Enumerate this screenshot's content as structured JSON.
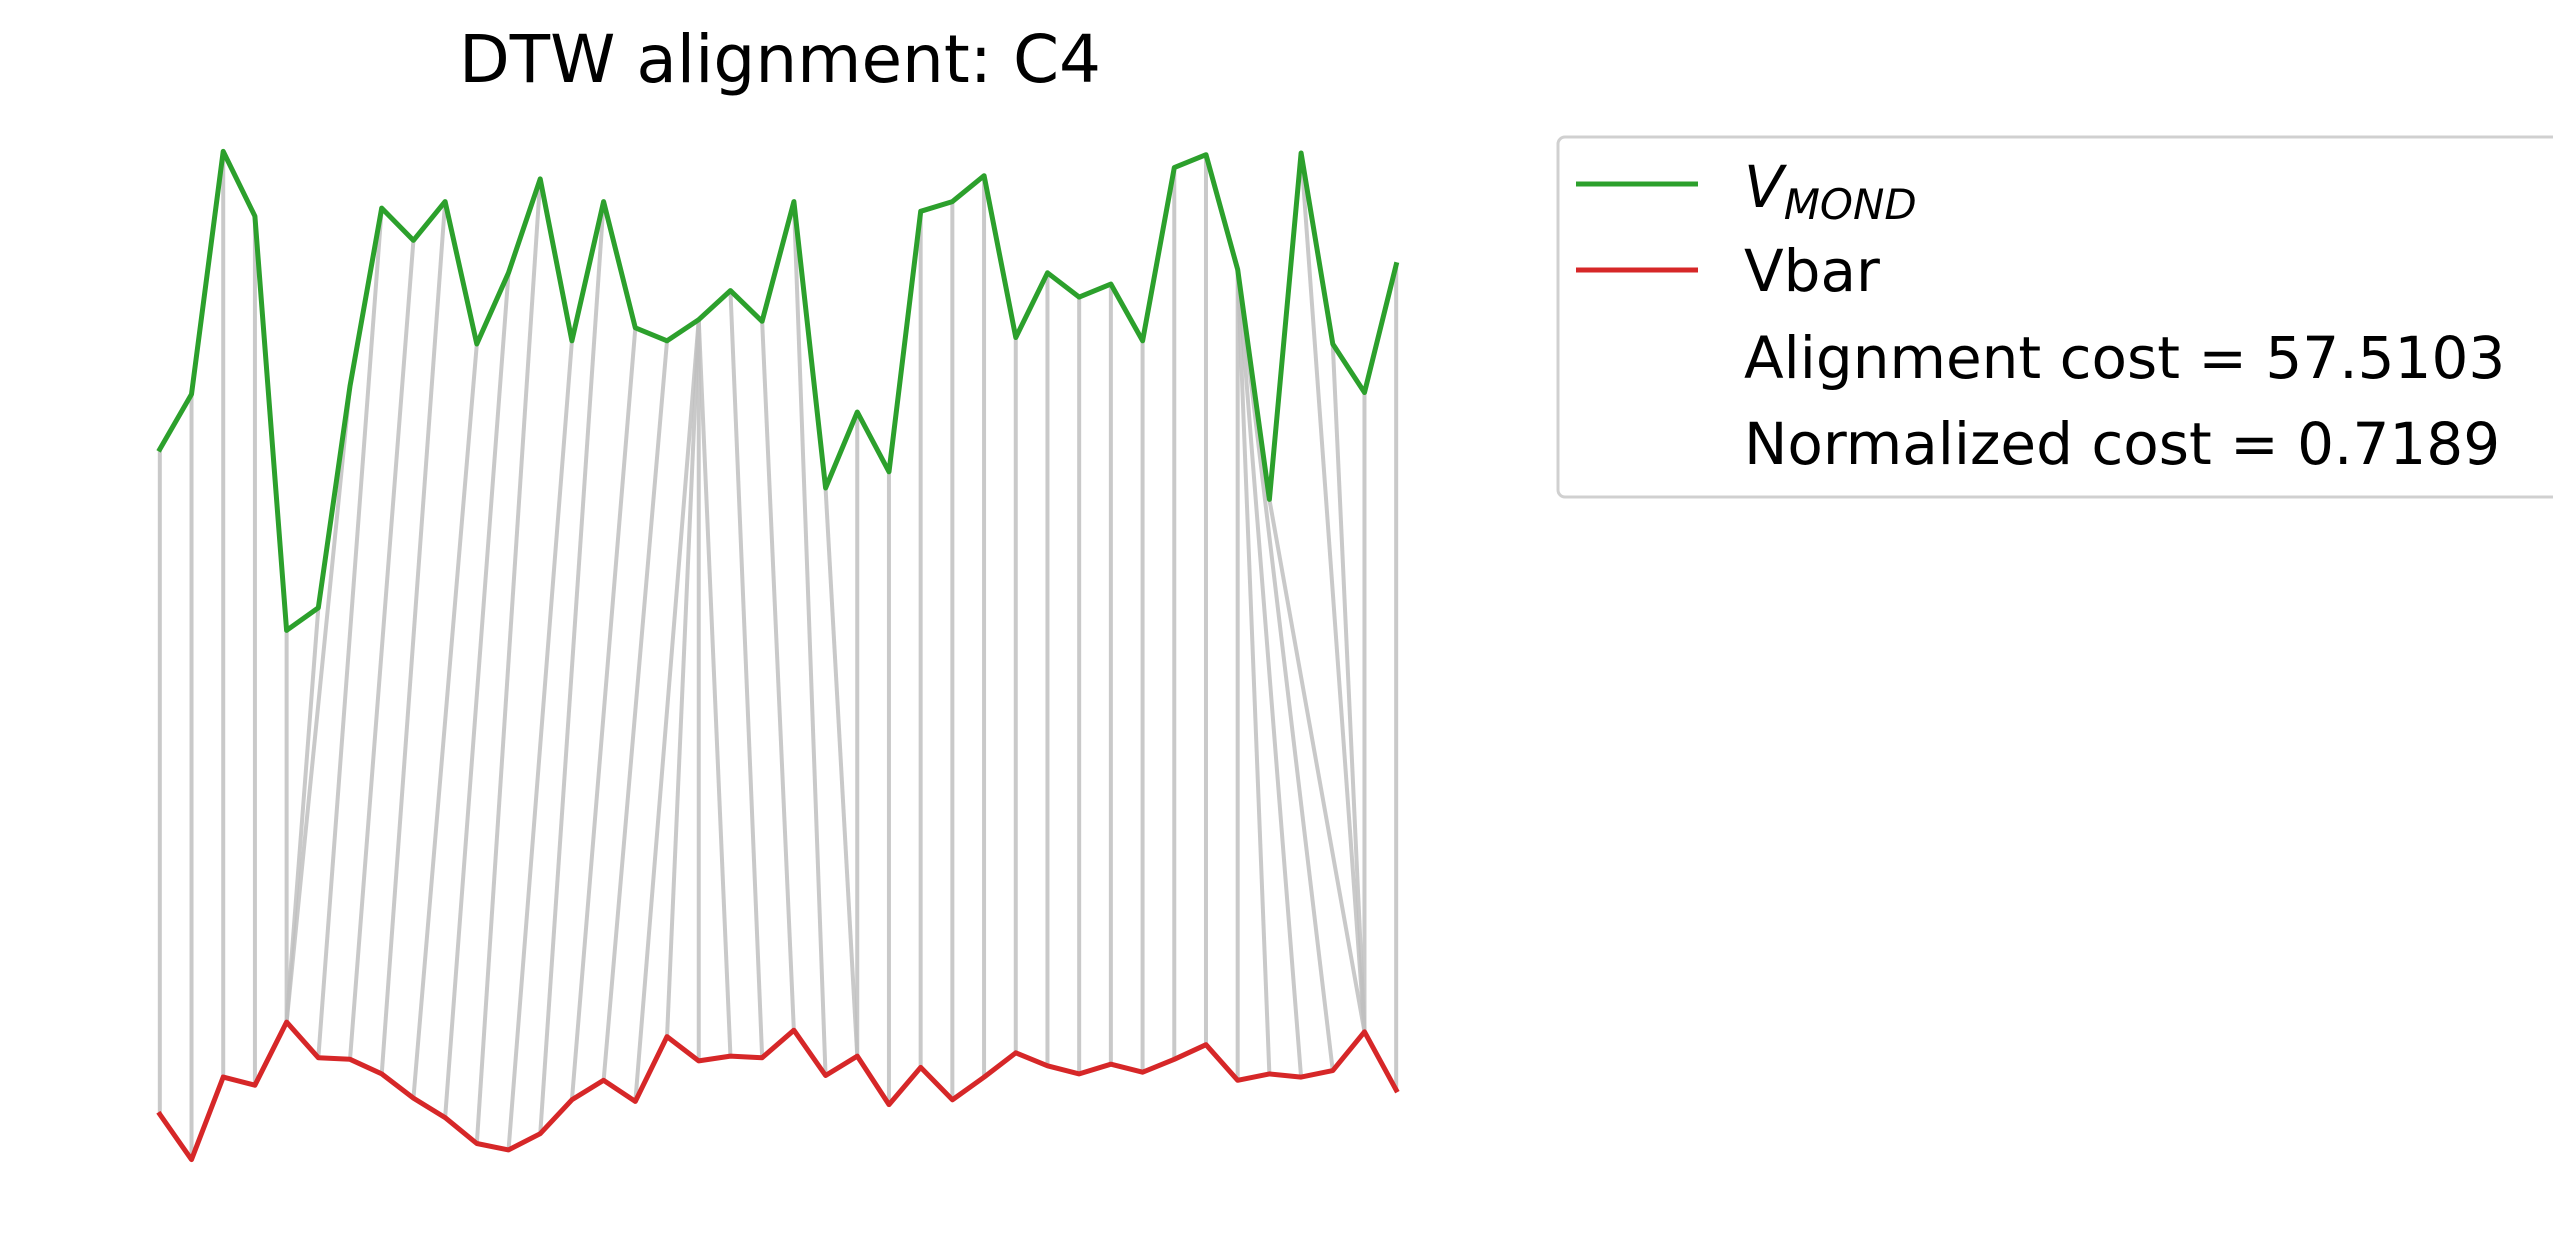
{
  "chart_data": {
    "type": "line",
    "title": "DTW alignment: C4",
    "xlabel": "",
    "ylabel": "",
    "axes_visible": false,
    "grid": false,
    "legend_position": "upper right, outside plot area",
    "series": [
      {
        "name": "V",
        "name_subscript": "MOND",
        "color": "#2ca02c",
        "x": [
          0,
          1,
          2,
          3,
          4,
          5,
          6,
          7,
          8,
          9,
          10,
          11,
          12,
          13,
          14,
          15,
          16,
          17,
          18,
          19,
          20,
          21,
          22,
          23,
          24,
          25,
          26,
          27,
          28,
          29,
          30,
          31,
          32,
          33,
          34,
          35,
          36,
          37,
          38,
          39
        ],
        "values": [
          44.9,
          48.3,
          63.3,
          59.3,
          33.7,
          35.1,
          48.8,
          59.8,
          57.8,
          60.2,
          51.4,
          55.8,
          61.6,
          51.6,
          60.2,
          52.4,
          51.6,
          52.9,
          54.7,
          52.8,
          60.2,
          42.5,
          47.2,
          43.5,
          59.6,
          60.2,
          61.8,
          51.8,
          55.8,
          54.3,
          55.1,
          51.6,
          62.3,
          63.1,
          56.0,
          41.8,
          63.2,
          51.4,
          48.4,
          56.3
        ]
      },
      {
        "name": "Vbar",
        "color": "#d62728",
        "x": [
          0,
          1,
          2,
          3,
          4,
          5,
          6,
          7,
          8,
          9,
          10,
          11,
          12,
          13,
          14,
          15,
          16,
          17,
          18,
          19,
          20,
          21,
          22,
          23,
          24,
          25,
          26,
          27,
          28,
          29,
          30,
          31,
          32,
          33,
          34,
          35,
          36,
          37,
          38,
          39
        ],
        "values": [
          3.8,
          1.0,
          6.1,
          5.6,
          9.5,
          7.3,
          7.2,
          6.3,
          4.8,
          3.6,
          2.0,
          1.6,
          2.6,
          4.7,
          5.9,
          4.6,
          8.6,
          7.1,
          7.4,
          7.3,
          9.0,
          6.2,
          7.4,
          4.4,
          6.7,
          4.7,
          6.1,
          7.6,
          6.8,
          6.3,
          6.9,
          6.4,
          7.2,
          8.1,
          5.9,
          6.3,
          6.1,
          6.5,
          8.9,
          5.3
        ]
      }
    ],
    "alignment_path": [
      [
        0,
        0
      ],
      [
        1,
        1
      ],
      [
        2,
        2
      ],
      [
        3,
        3
      ],
      [
        4,
        4
      ],
      [
        5,
        4
      ],
      [
        6,
        4
      ],
      [
        7,
        5
      ],
      [
        8,
        6
      ],
      [
        9,
        7
      ],
      [
        10,
        8
      ],
      [
        11,
        9
      ],
      [
        12,
        10
      ],
      [
        13,
        11
      ],
      [
        14,
        12
      ],
      [
        15,
        13
      ],
      [
        16,
        14
      ],
      [
        17,
        15
      ],
      [
        17,
        16
      ],
      [
        17,
        17
      ],
      [
        17,
        18
      ],
      [
        18,
        19
      ],
      [
        19,
        20
      ],
      [
        20,
        21
      ],
      [
        21,
        22
      ],
      [
        22,
        22
      ],
      [
        23,
        23
      ],
      [
        24,
        24
      ],
      [
        25,
        25
      ],
      [
        26,
        26
      ],
      [
        27,
        27
      ],
      [
        28,
        28
      ],
      [
        29,
        29
      ],
      [
        30,
        30
      ],
      [
        31,
        31
      ],
      [
        32,
        32
      ],
      [
        33,
        33
      ],
      [
        34,
        34
      ],
      [
        34,
        35
      ],
      [
        34,
        36
      ],
      [
        34,
        37
      ],
      [
        35,
        38
      ],
      [
        36,
        38
      ],
      [
        37,
        38
      ],
      [
        38,
        38
      ],
      [
        39,
        39
      ]
    ],
    "path_color": "#bfbfbf",
    "ylim": [
      -1,
      64.5
    ],
    "xlim": [
      -1.95,
      40.95
    ],
    "annotations": [
      "Alignment cost = 57.5103",
      "Normalized cost = 0.7189"
    ]
  }
}
